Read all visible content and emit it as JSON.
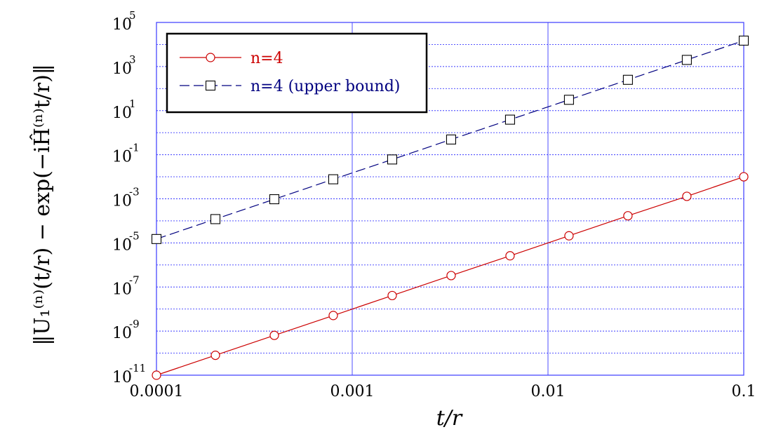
{
  "chart_data": {
    "type": "line",
    "title": "",
    "xlabel": "t/r",
    "ylabel": "‖U₁⁽ⁿ⁾(t/r) − exp(−iĤ⁽ⁿ⁾t/r)‖",
    "x_scale": "log",
    "y_scale": "log",
    "xlim": [
      0.0001,
      0.1
    ],
    "ylim": [
      1e-11,
      100000.0
    ],
    "x_ticks": [
      "0.0001",
      "0.001",
      "0.01",
      "0.1"
    ],
    "y_ticks": [
      {
        "base": "10",
        "exp": "5"
      },
      {
        "base": "10",
        "exp": "3"
      },
      {
        "base": "10",
        "exp": "1"
      },
      {
        "base": "10",
        "exp": "-1"
      },
      {
        "base": "10",
        "exp": "-3"
      },
      {
        "base": "10",
        "exp": "-5"
      },
      {
        "base": "10",
        "exp": "-7"
      },
      {
        "base": "10",
        "exp": "-9"
      },
      {
        "base": "10",
        "exp": "-11"
      }
    ],
    "grid": true,
    "legend_position": "top-left",
    "x": [
      0.0001,
      0.0002,
      0.0004,
      0.0008,
      0.0016,
      0.0032,
      0.0064,
      0.0128,
      0.0256,
      0.0512,
      0.1
    ],
    "series": [
      {
        "name": "n=4",
        "color": "#cc0000",
        "marker": "circle",
        "line": "solid",
        "values": [
          1e-11,
          8e-11,
          6.4e-10,
          5.1e-09,
          4.1e-08,
          3.3e-07,
          2.6e-06,
          2.1e-05,
          0.00017,
          0.0013,
          0.01
        ]
      },
      {
        "name": "n=4 (upper bound)",
        "color": "#000080",
        "marker": "square",
        "line": "dashed",
        "values": [
          1.5e-05,
          0.00012,
          0.00096,
          0.0077,
          0.061,
          0.49,
          3.9,
          31,
          250,
          2000,
          15000
        ]
      }
    ],
    "colors": {
      "grid": "#3b3bff",
      "axis": "#3b3bff"
    }
  }
}
